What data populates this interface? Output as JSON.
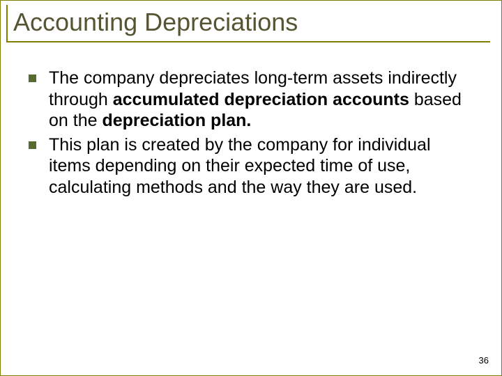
{
  "slide": {
    "title": "Accounting Depreciations",
    "title_color": "#555533",
    "title_fontsize": 36,
    "rule_color": "#808000",
    "bullets": [
      {
        "runs": [
          {
            "t": "The company depreciates long-term assets indirectly through ",
            "b": false
          },
          {
            "t": "accumulated depreciation accounts",
            "b": true
          },
          {
            "t": " based on the ",
            "b": false
          },
          {
            "t": "depreciation plan.",
            "b": true
          }
        ]
      },
      {
        "runs": [
          {
            "t": "This plan is created by the company for individual items depending on their expected time of use, calculating methods and the way they are used.",
            "b": false
          }
        ]
      }
    ],
    "bullet_color": "#556b2f",
    "body_fontsize": 25,
    "body_color": "#000000",
    "background_color": "#ffffff",
    "page_number": "36",
    "page_number_fontsize": 13
  }
}
